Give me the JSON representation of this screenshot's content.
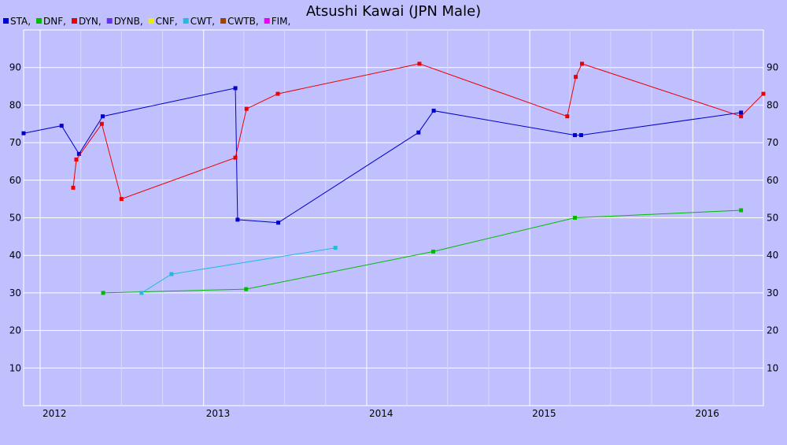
{
  "chart_data": {
    "type": "line",
    "title": "Atsushi Kawai (JPN Male)",
    "xlabel": "",
    "ylabel": "",
    "x_ticks": [
      "2012",
      "2013",
      "2014",
      "2015",
      "2016"
    ],
    "y_ticks": [
      10,
      20,
      30,
      40,
      50,
      60,
      70,
      80,
      90
    ],
    "ylim": [
      0,
      100
    ],
    "xlim": [
      "2011-11-25",
      "2016-06-07"
    ],
    "grid": true,
    "legend_position": "top-left",
    "legend": [
      {
        "label": "STA,",
        "color": "#0000cc"
      },
      {
        "label": "DNF,",
        "color": "#00bb00"
      },
      {
        "label": "DYN,",
        "color": "#ee0000"
      },
      {
        "label": "DYNB,",
        "color": "#6633ee"
      },
      {
        "label": "CNF,",
        "color": "#eeee00"
      },
      {
        "label": "CWT,",
        "color": "#22bbdd"
      },
      {
        "label": "CWTB,",
        "color": "#994400"
      },
      {
        "label": "FIM,",
        "color": "#ee00ee"
      }
    ],
    "series": [
      {
        "name": "STA",
        "color": "#0000cc",
        "points": [
          [
            "2011-11-25",
            72.5
          ],
          [
            "2012-02-18",
            74.5
          ],
          [
            "2012-03-28",
            67
          ],
          [
            "2012-05-20",
            77
          ],
          [
            "2013-03-13",
            84.5
          ],
          [
            "2013-03-18",
            49.5
          ],
          [
            "2013-06-17",
            48.7
          ],
          [
            "2014-04-27",
            72.7
          ],
          [
            "2014-05-31",
            78.5
          ],
          [
            "2015-04-12",
            72
          ],
          [
            "2015-04-26",
            72
          ],
          [
            "2016-04-18",
            78
          ]
        ]
      },
      {
        "name": "DNF",
        "color": "#00bb00",
        "points": [
          [
            "2012-05-21",
            30
          ],
          [
            "2013-04-06",
            31
          ],
          [
            "2014-05-30",
            41
          ],
          [
            "2015-04-12",
            50
          ],
          [
            "2016-04-18",
            52
          ]
        ]
      },
      {
        "name": "DYN",
        "color": "#ee0000",
        "points": [
          [
            "2012-03-15",
            58
          ],
          [
            "2012-03-22",
            65.5
          ],
          [
            "2012-05-18",
            75
          ],
          [
            "2012-07-01",
            55
          ],
          [
            "2013-03-13",
            66
          ],
          [
            "2013-04-07",
            79
          ],
          [
            "2013-06-16",
            83
          ],
          [
            "2014-04-29",
            91
          ],
          [
            "2015-03-26",
            77
          ],
          [
            "2015-04-14",
            87.5
          ],
          [
            "2015-04-28",
            91
          ],
          [
            "2016-04-18",
            77
          ],
          [
            "2016-06-07",
            83
          ]
        ]
      },
      {
        "name": "CWT",
        "color": "#22bbdd",
        "points": [
          [
            "2012-08-15",
            30
          ],
          [
            "2012-10-21",
            35
          ],
          [
            "2013-10-23",
            42
          ]
        ]
      }
    ]
  }
}
